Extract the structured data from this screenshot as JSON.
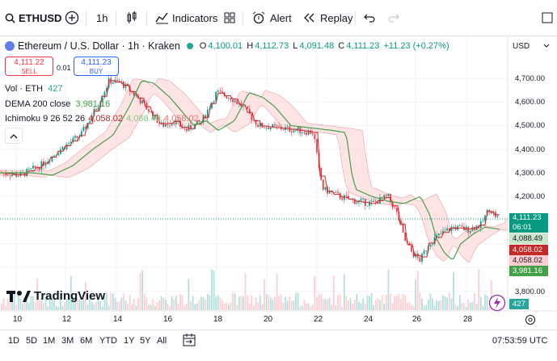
{
  "toolbar": {
    "symbol": "ETHUSD",
    "interval": "1h",
    "indicators_label": "Indicators",
    "alert_label": "Alert",
    "replay_label": "Replay"
  },
  "legend": {
    "pair_name": "Ethereum / U.S. Dollar · 1h · Kraken",
    "o_label": "O",
    "o_value": "4,100.01",
    "h_label": "H",
    "h_value": "4,112.73",
    "l_label": "L",
    "l_value": "4,091.48",
    "c_label": "C",
    "c_value": "4,111.23",
    "change": "+11.23 (+0.27%)"
  },
  "trade": {
    "sell_price": "4,111.22",
    "sell_label": "SELL",
    "spread": "0.01",
    "buy_price": "4,111.23",
    "buy_label": "BUY"
  },
  "indicators": {
    "vol_label": "Vol · ETH",
    "vol_value": "427",
    "dema_label": "DEMA 200 close",
    "dema_value": "3,981.16",
    "ichimoku_label": "Ichimoku 9 26 52 26",
    "ich_v1": "4,058.02",
    "ich_v2": "4,088.49",
    "ich_v3": "4,058.02"
  },
  "price_axis": {
    "currency": "USD",
    "ticks": [
      "4,700.00",
      "4,600.00",
      "4,500.00",
      "4,400.00",
      "4,300.00",
      "4,200.00",
      "3,800.00"
    ],
    "badge_price": "4,111.23",
    "badge_countdown": "06:01",
    "badge_ich_b": "4,088.49",
    "badge_ich_a": "4,058.02",
    "badge_ich_base": "4,058.02",
    "badge_dema": "3,981.16",
    "badge_vol": "427"
  },
  "time_axis": {
    "ticks": [
      "10",
      "12",
      "14",
      "16",
      "18",
      "20",
      "22",
      "24",
      "26",
      "28"
    ]
  },
  "bottom": {
    "ranges": [
      "1D",
      "5D",
      "1M",
      "3M",
      "6M",
      "YTD",
      "1Y",
      "5Y",
      "All"
    ],
    "clock": "07:53:59 UTC"
  },
  "branding": {
    "logo_text": "TradingView"
  },
  "colors": {
    "up": "#089981",
    "down": "#f23645",
    "dema": "#43a047",
    "tenkan": "#c62828",
    "cloud_bull": "#c8e6c9",
    "cloud_bear": "#ffcdd2",
    "accent": "#2962ff"
  }
}
